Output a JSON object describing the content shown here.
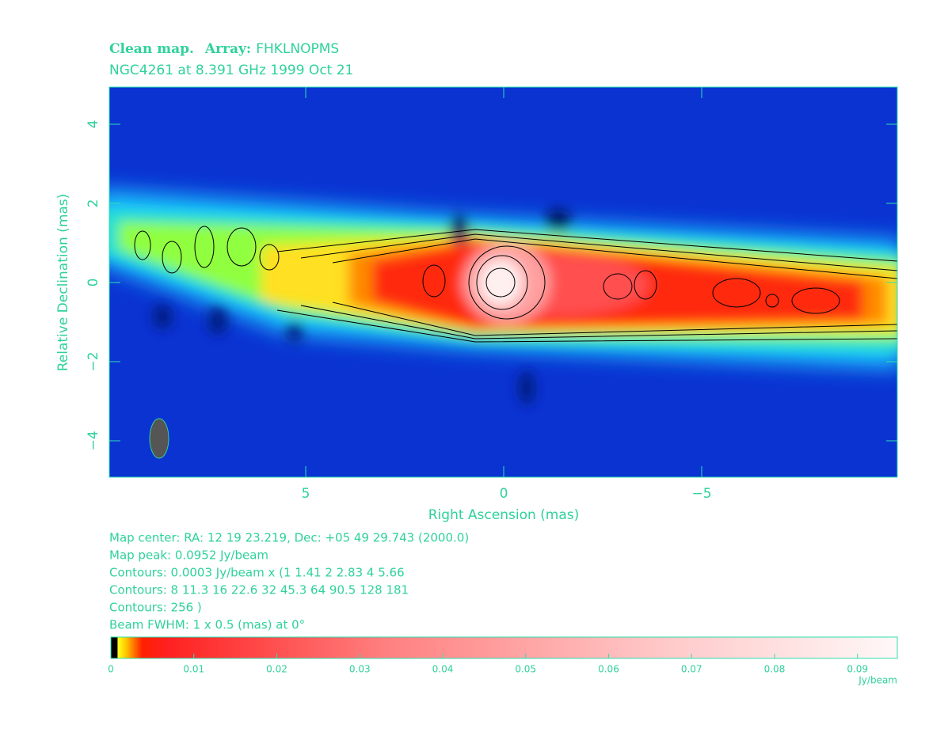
{
  "chart_data": {
    "type": "image",
    "title": "Clean map.",
    "array_label": "Array:",
    "array": "FHKLNOPMS",
    "subtitle": "NGC4261 at 8.391 GHz 1999 Oct 21",
    "xlabel": "Right Ascension  (mas)",
    "ylabel": "Relative Declination  (mas)",
    "xlim": [
      9.96,
      -9.94
    ],
    "xticks": [
      5,
      0,
      {
        "value": -5,
        "label": "−5"
      }
    ],
    "ylim": [
      -4.92,
      4.94
    ],
    "yticks": [
      {
        "value": -4,
        "label": "−4"
      },
      {
        "value": -2,
        "label": "−2"
      },
      0,
      2,
      4
    ],
    "notes": [
      "Map center:  RA: 12 19 23.219,  Dec: +05 49 29.743 (2000.0)",
      "Map peak: 0.0952 Jy/beam",
      "Contours: 0.0003 Jy/beam x (1 1.41 2 2.83 4 5.66",
      "Contours: 8 11.3 16 22.6 32 45.3 64 90.5 128 181",
      "Contours: 256 )",
      "Beam FWHM: 1 x 0.5 (mas) at 0°"
    ],
    "colorbar": {
      "label": "Jy/beam",
      "lim": [
        0,
        0.0948
      ],
      "ticks": [
        0,
        0.01,
        0.02,
        0.03,
        0.04,
        0.05,
        0.06,
        0.07,
        0.08,
        0.09
      ]
    }
  }
}
